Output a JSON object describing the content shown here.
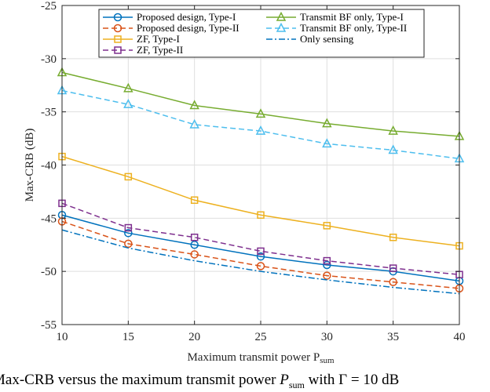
{
  "chart_data": {
    "type": "line",
    "title": "",
    "xlabel": "Maximum transmit power P",
    "xlabel_sub": "sum",
    "ylabel": "Max-CRB (dB)",
    "xlim": [
      10,
      40
    ],
    "ylim": [
      -55,
      -25
    ],
    "grid": true,
    "legend_position": "top",
    "x": [
      10,
      15,
      20,
      25,
      30,
      35,
      40
    ],
    "xticks": [
      "10",
      "15",
      "20",
      "25",
      "30",
      "35",
      "40"
    ],
    "yticks": [
      "-25",
      "-30",
      "-35",
      "-40",
      "-45",
      "-50",
      "-55"
    ],
    "series": [
      {
        "name": "Proposed design, Type-I",
        "color": "#0072BD",
        "dash": "solid",
        "marker": "circle",
        "values": [
          -44.7,
          -46.4,
          -47.5,
          -48.6,
          -49.4,
          -50.0,
          -50.9
        ]
      },
      {
        "name": "Proposed design, Type-II",
        "color": "#D95319",
        "dash": "dashed",
        "marker": "circle",
        "values": [
          -45.3,
          -47.4,
          -48.4,
          -49.5,
          -50.4,
          -51.0,
          -51.6
        ]
      },
      {
        "name": "ZF, Type-I",
        "color": "#EDB120",
        "dash": "solid",
        "marker": "square",
        "values": [
          -39.2,
          -41.1,
          -43.3,
          -44.7,
          -45.7,
          -46.8,
          -47.6
        ]
      },
      {
        "name": "ZF, Type-II",
        "color": "#7E2F8E",
        "dash": "dashed",
        "marker": "square",
        "values": [
          -43.6,
          -45.9,
          -46.8,
          -48.1,
          -49.0,
          -49.7,
          -50.3
        ]
      },
      {
        "name": "Transmit BF only, Type-I",
        "color": "#77AC30",
        "dash": "solid",
        "marker": "triangle",
        "values": [
          -31.3,
          -32.8,
          -34.4,
          -35.2,
          -36.1,
          -36.8,
          -37.3
        ]
      },
      {
        "name": "Transmit BF only, Type-II",
        "color": "#4DBEEE",
        "dash": "dashed",
        "marker": "triangle",
        "values": [
          -33.0,
          -34.3,
          -36.2,
          -36.8,
          -38.0,
          -38.6,
          -39.4
        ]
      },
      {
        "name": "Only sensing",
        "color": "#0072BD",
        "dash": "dashdot",
        "marker": "none",
        "values": [
          -46.1,
          -47.8,
          -49.0,
          -50.0,
          -50.8,
          -51.5,
          -52.1
        ]
      }
    ]
  },
  "caption": {
    "part1": "Max-CRB versus the maximum transmit power ",
    "var": "P",
    "var_sub": "sum",
    "part2": " with ",
    "gamma": "Γ",
    "part3": " = 10 dB"
  }
}
